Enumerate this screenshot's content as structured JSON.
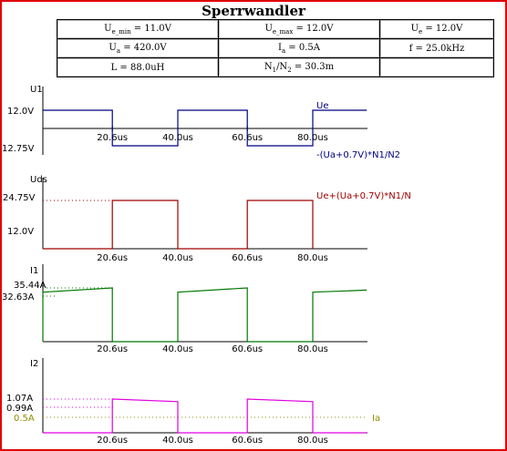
{
  "title": "Sperrwandler",
  "params": [
    [
      {
        "main": "U",
        "sub": "e_min",
        "rest": " = 11.0V"
      },
      {
        "main": "U",
        "sub": "e_max",
        "rest": " = 12.0V"
      },
      {
        "main": "U",
        "sub": "e",
        "rest": " = 12.0V"
      }
    ],
    [
      {
        "main": "U",
        "sub": "a",
        "rest": " = 420.0V"
      },
      {
        "main": "I",
        "sub": "a",
        "rest": " = 0.5A"
      },
      {
        "main": "f = 25.0kHz",
        "sub": "",
        "rest": ""
      }
    ],
    [
      {
        "main": "L = 88.0uH",
        "sub": "",
        "rest": ""
      },
      {
        "main": "N",
        "sub": "1",
        "rest": "/N",
        "sub2": "2",
        "rest2": " = 30.3m"
      },
      {
        "main": "",
        "sub": "",
        "rest": ""
      }
    ]
  ],
  "colors": {
    "u1": "#000080",
    "uds": "#a00000",
    "i1": "#007800",
    "i2": "#e000e0",
    "ia": "#909000",
    "axis": "#000000"
  },
  "chart_data": [
    {
      "type": "line",
      "ylabel": "U1",
      "x_ticks": [
        "20.6us",
        "40.0us",
        "60.6us",
        "80.0us"
      ],
      "y_ticks": [
        "12.0V",
        "12.75V"
      ],
      "annotations": [
        "Ue",
        "-(Ua+0.7V)*N1/N2"
      ],
      "series": [
        {
          "x": [
            0,
            20.6,
            20.6,
            40.0,
            40.0,
            60.6,
            60.6,
            80.0,
            80.0,
            96
          ],
          "y": [
            12.0,
            12.0,
            -12.75,
            -12.75,
            12.0,
            12.0,
            -12.75,
            -12.75,
            12.0,
            12.0
          ]
        }
      ],
      "ylim": [
        -16,
        16
      ]
    },
    {
      "type": "line",
      "ylabel": "Uds",
      "x_ticks": [
        "20.6us",
        "40.0us",
        "60.6us",
        "80.0us"
      ],
      "y_ticks": [
        "24.75V",
        "12.0V"
      ],
      "annotations": [
        "Ue+(Ua+0.7V)*N1/N"
      ],
      "series": [
        {
          "x": [
            0,
            20.6,
            20.6,
            40.0,
            40.0,
            60.6,
            60.6,
            80.0,
            80.0
          ],
          "y": [
            0,
            0,
            24.75,
            24.75,
            0,
            0,
            24.75,
            24.75,
            0
          ]
        }
      ],
      "ylim": [
        0,
        30
      ]
    },
    {
      "type": "line",
      "ylabel": "I1",
      "x_ticks": [
        "20.6us",
        "40.0us",
        "60.6us",
        "80.0us"
      ],
      "y_ticks": [
        "35.44A",
        "32.63A"
      ],
      "series": [
        {
          "x": [
            0,
            0,
            20.6,
            20.6,
            40.0,
            40.0,
            60.6,
            60.6,
            80.0,
            80.0,
            96
          ],
          "y": [
            0,
            32.63,
            35.44,
            0,
            0,
            32.63,
            35.44,
            0,
            0,
            32.63,
            34.0
          ]
        }
      ],
      "ylim": [
        0,
        37
      ]
    },
    {
      "type": "line",
      "ylabel": "I2",
      "x_ticks": [
        "20.6us",
        "40.0us",
        "60.6us",
        "80.0us"
      ],
      "y_ticks": [
        "1.07A",
        "0.99A",
        "0.5A"
      ],
      "annotations": [
        "Ia"
      ],
      "series": [
        {
          "x": [
            0,
            20.6,
            20.6,
            40.0,
            40.0,
            60.6,
            60.6,
            80.0,
            80.0,
            96
          ],
          "y": [
            0,
            0,
            1.07,
            0.99,
            0,
            0,
            1.07,
            0.99,
            0,
            0
          ]
        },
        {
          "x": [
            0,
            96
          ],
          "y": [
            0.5,
            0.5
          ]
        }
      ],
      "ylim": [
        0,
        1.3
      ]
    }
  ]
}
